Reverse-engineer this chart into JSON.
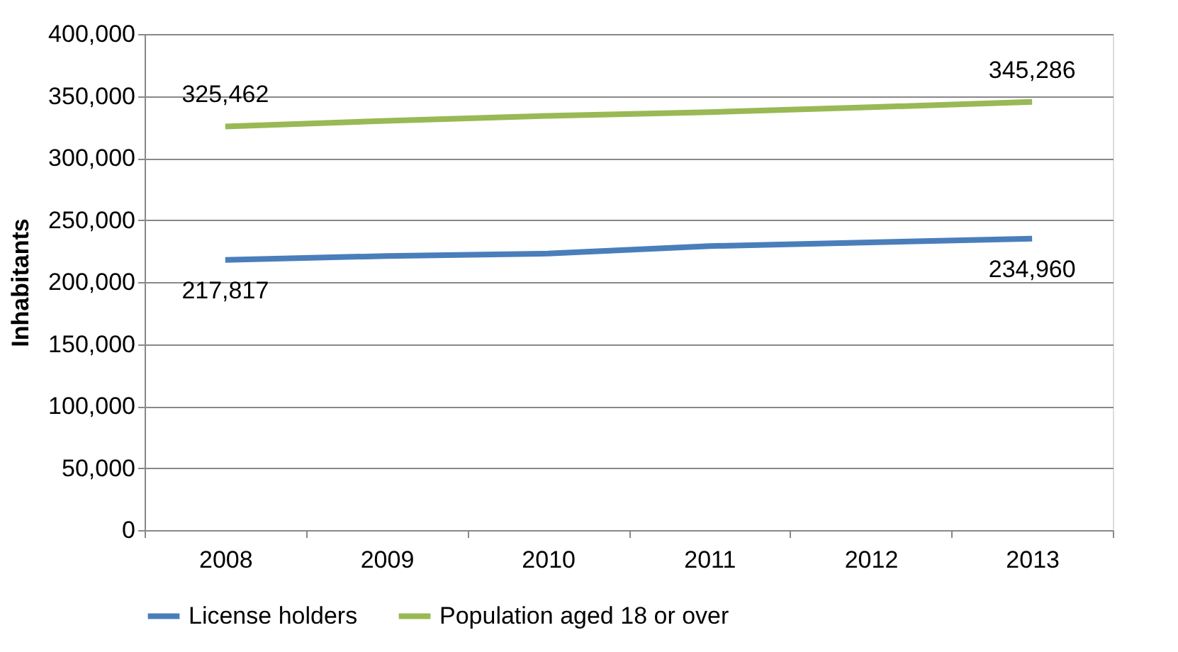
{
  "chart_data": {
    "type": "line",
    "ylabel": "Inhabitants",
    "categories": [
      "2008",
      "2009",
      "2010",
      "2011",
      "2012",
      "2013"
    ],
    "series": [
      {
        "name": "License holders",
        "color": "#4a7ebb",
        "values": [
          217817,
          221000,
          223000,
          229000,
          232000,
          234960
        ],
        "value_labels": [
          "217,817",
          null,
          null,
          null,
          null,
          "234,960"
        ]
      },
      {
        "name": "Population aged 18 or over",
        "color": "#98b954",
        "values": [
          325462,
          330000,
          334000,
          337000,
          341000,
          345286
        ],
        "value_labels": [
          "325,462",
          null,
          null,
          null,
          null,
          "345,286"
        ]
      }
    ],
    "ylim": [
      0,
      400000
    ],
    "yticks": [
      0,
      {
        "value": 50000,
        "label": "50,000"
      },
      {
        "value": 100000,
        "label": "100,000"
      },
      {
        "value": 150000,
        "label": "150,000"
      },
      {
        "value": 200000,
        "label": "200,000"
      },
      {
        "value": 250000,
        "label": "250,000"
      },
      {
        "value": 300000,
        "label": "300,000"
      },
      {
        "value": 350000,
        "label": "350,000"
      },
      {
        "value": 400000,
        "label": "400,000"
      }
    ],
    "grid": "y",
    "legend": "bottom",
    "marker": "none",
    "line_style": "solid"
  }
}
